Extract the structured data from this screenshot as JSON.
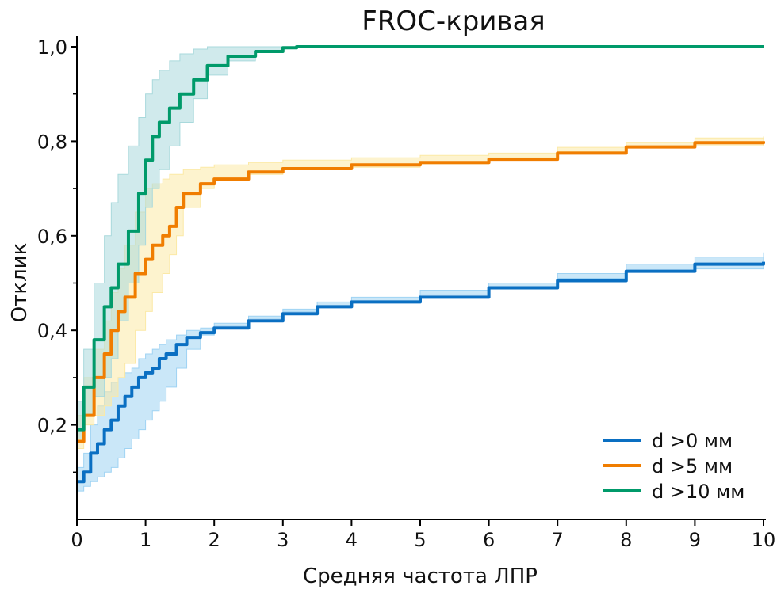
{
  "chart_data": {
    "type": "line",
    "title": "FROC-кривая",
    "xlabel": "Средняя частота ЛПР",
    "ylabel": "Отклик",
    "xlim": [
      0,
      10
    ],
    "ylim": [
      0,
      1.0
    ],
    "xticks": [
      "0",
      "1",
      "2",
      "3",
      "4",
      "5",
      "6",
      "7",
      "8",
      "9",
      "10"
    ],
    "yticks": [
      {
        "v": 0.2,
        "label": "0,2"
      },
      {
        "v": 0.4,
        "label": "0,4"
      },
      {
        "v": 0.6,
        "label": "0,6"
      },
      {
        "v": 0.8,
        "label": "0,8"
      },
      {
        "v": 1.0,
        "label": "1,0"
      }
    ],
    "grid": false,
    "legend_position": "bottom-right",
    "series": [
      {
        "name": "d >0 мм",
        "color": "#0a6fc2",
        "band_color": "#9fd3f3",
        "x": [
          0,
          0.1,
          0.2,
          0.3,
          0.4,
          0.5,
          0.6,
          0.7,
          0.8,
          0.9,
          1.0,
          1.1,
          1.2,
          1.3,
          1.45,
          1.6,
          1.8,
          2,
          2.5,
          3,
          3.5,
          4,
          5,
          6,
          7,
          8,
          9,
          10
        ],
        "y": [
          0.08,
          0.1,
          0.14,
          0.16,
          0.19,
          0.21,
          0.24,
          0.26,
          0.28,
          0.3,
          0.31,
          0.32,
          0.34,
          0.35,
          0.37,
          0.385,
          0.395,
          0.405,
          0.42,
          0.435,
          0.45,
          0.46,
          0.47,
          0.49,
          0.505,
          0.525,
          0.54,
          0.545
        ],
        "lower": [
          0.05,
          0.06,
          0.07,
          0.08,
          0.09,
          0.1,
          0.11,
          0.13,
          0.15,
          0.17,
          0.19,
          0.21,
          0.23,
          0.25,
          0.28,
          0.32,
          0.36,
          0.39,
          0.41,
          0.425,
          0.44,
          0.45,
          0.46,
          0.475,
          0.49,
          0.51,
          0.525,
          0.53
        ],
        "upper": [
          0.11,
          0.14,
          0.2,
          0.24,
          0.27,
          0.29,
          0.3,
          0.31,
          0.32,
          0.34,
          0.35,
          0.36,
          0.37,
          0.38,
          0.39,
          0.4,
          0.405,
          0.415,
          0.43,
          0.445,
          0.46,
          0.47,
          0.485,
          0.5,
          0.52,
          0.54,
          0.555,
          0.565
        ]
      },
      {
        "name": "d >5 мм",
        "color": "#f07d00",
        "band_color": "#fbe9a6",
        "x": [
          0,
          0.1,
          0.25,
          0.4,
          0.5,
          0.6,
          0.7,
          0.85,
          1,
          1.1,
          1.25,
          1.35,
          1.45,
          1.55,
          1.8,
          2,
          2.5,
          3,
          4,
          5,
          6,
          7,
          8,
          9,
          10
        ],
        "y": [
          0.165,
          0.22,
          0.3,
          0.35,
          0.4,
          0.44,
          0.47,
          0.52,
          0.55,
          0.58,
          0.6,
          0.62,
          0.66,
          0.69,
          0.71,
          0.72,
          0.735,
          0.742,
          0.75,
          0.755,
          0.762,
          0.775,
          0.788,
          0.797,
          0.8
        ],
        "lower": [
          0.12,
          0.15,
          0.2,
          0.22,
          0.24,
          0.26,
          0.3,
          0.33,
          0.4,
          0.44,
          0.48,
          0.52,
          0.56,
          0.6,
          0.66,
          0.7,
          0.72,
          0.73,
          0.74,
          0.745,
          0.752,
          0.765,
          0.778,
          0.787,
          0.79
        ],
        "upper": [
          0.22,
          0.3,
          0.36,
          0.42,
          0.48,
          0.53,
          0.58,
          0.65,
          0.7,
          0.71,
          0.72,
          0.73,
          0.73,
          0.74,
          0.745,
          0.75,
          0.755,
          0.76,
          0.765,
          0.77,
          0.775,
          0.787,
          0.798,
          0.807,
          0.81
        ]
      },
      {
        "name": "d >10 мм",
        "color": "#009a6a",
        "band_color": "#a9d9dc",
        "x": [
          0,
          0.1,
          0.25,
          0.4,
          0.5,
          0.6,
          0.75,
          0.9,
          1,
          1.1,
          1.2,
          1.35,
          1.5,
          1.7,
          1.9,
          2.2,
          2.6,
          3.0,
          3.2,
          10
        ],
        "y": [
          0.19,
          0.28,
          0.38,
          0.45,
          0.49,
          0.54,
          0.61,
          0.69,
          0.76,
          0.81,
          0.84,
          0.87,
          0.9,
          0.93,
          0.96,
          0.98,
          0.99,
          0.998,
          1.0,
          1.0
        ],
        "lower": [
          0.13,
          0.17,
          0.22,
          0.26,
          0.3,
          0.34,
          0.42,
          0.5,
          0.58,
          0.66,
          0.7,
          0.74,
          0.79,
          0.84,
          0.89,
          0.94,
          0.97,
          0.99,
          1.0,
          1.0
        ],
        "upper": [
          0.25,
          0.36,
          0.5,
          0.6,
          0.67,
          0.73,
          0.79,
          0.85,
          0.9,
          0.93,
          0.95,
          0.97,
          0.985,
          0.995,
          1.0,
          1.0,
          1.0,
          1.0,
          1.0,
          1.0
        ]
      }
    ]
  }
}
